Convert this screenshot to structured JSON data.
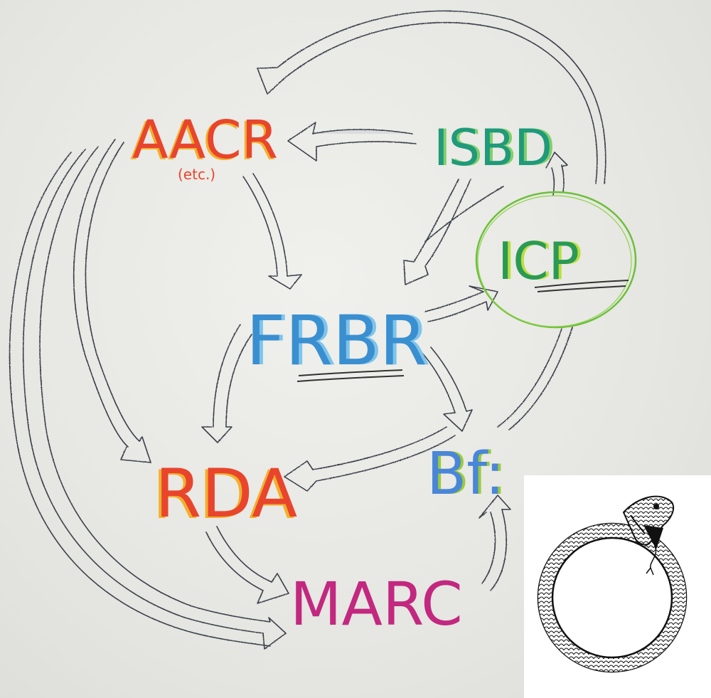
{
  "nodes": {
    "aacr": {
      "label": "AACR",
      "sublabel": "(etc.)",
      "color": "#e8452c",
      "accent": "#f2b02a"
    },
    "isbd": {
      "label": "ISBD",
      "color": "#1f9a7a",
      "accent": "#7fd06a"
    },
    "icp": {
      "label": "ICP",
      "color": "#2a9a55",
      "accent": "#b9df3a",
      "ring": "#6cc03a"
    },
    "frbr": {
      "label": "FRBR",
      "color": "#3a8fd0",
      "accent": "#7fc4ea"
    },
    "rda": {
      "label": "RDA",
      "color": "#e8452c",
      "accent": "#f2b02a"
    },
    "bf": {
      "label": "Bf:",
      "color": "#4a86d8",
      "accent": "#9acb3a"
    },
    "marc": {
      "label": "MARC",
      "color": "#c2287f"
    }
  },
  "colors": {
    "arrow_stroke": "#3b3f4a",
    "arrow_shade": "#9aa0b4",
    "paper": "#e9e9e6"
  },
  "inset": {
    "icon": "ouroboros-icon"
  }
}
